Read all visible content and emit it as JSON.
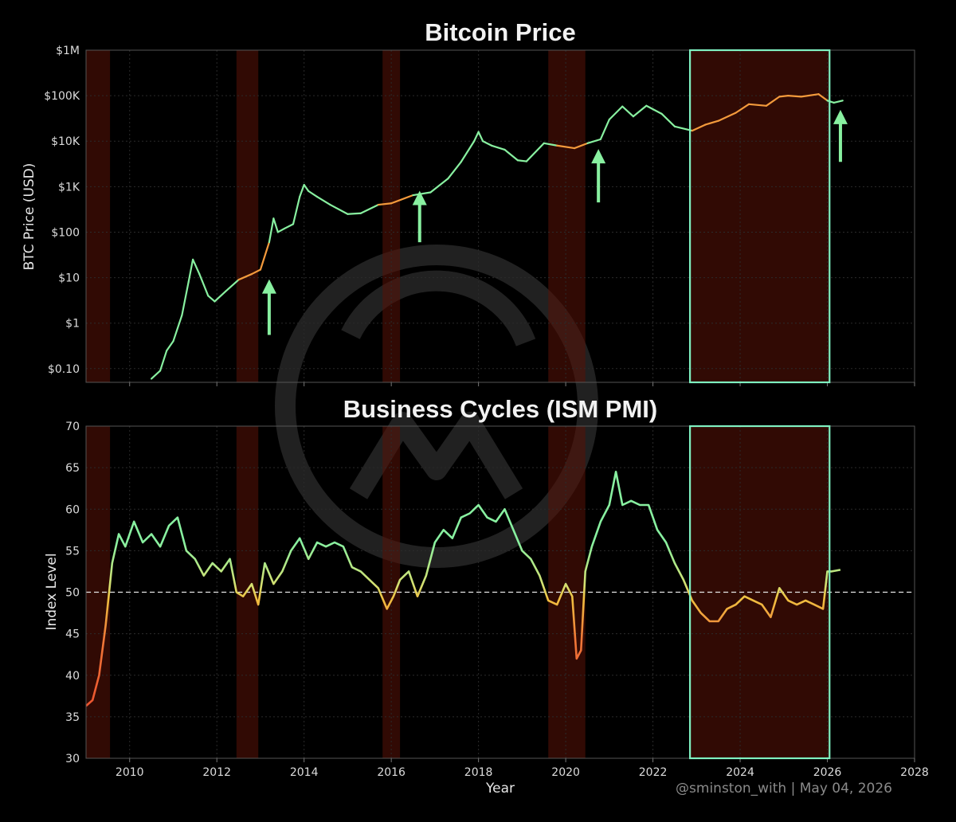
{
  "credit": "@sminston_with  |  May 04, 2026",
  "chart_data": [
    {
      "type": "line",
      "title": "Bitcoin Price",
      "ylabel": "BTC Price (USD)",
      "xlabel": "",
      "yscale": "log",
      "xlim": [
        2009.0,
        2028.0
      ],
      "ylim": [
        0.05,
        1000000
      ],
      "yticks": [
        {
          "v": 1000000,
          "label": "$1M"
        },
        {
          "v": 100000,
          "label": "$100K"
        },
        {
          "v": 10000,
          "label": "$10K"
        },
        {
          "v": 1000,
          "label": "$1K"
        },
        {
          "v": 100,
          "label": "$100"
        },
        {
          "v": 10,
          "label": "$10"
        },
        {
          "v": 1,
          "label": "$1"
        },
        {
          "v": 0.1,
          "label": "$0.10"
        }
      ],
      "grid": true,
      "recession_spans": [
        [
          2009.0,
          2009.55
        ],
        [
          2012.45,
          2012.95
        ],
        [
          2015.8,
          2016.2
        ],
        [
          2019.6,
          2020.45
        ],
        [
          2022.85,
          2026.05
        ]
      ],
      "highlight_box": [
        2022.85,
        2026.05
      ],
      "arrows": [
        {
          "x": 2013.2,
          "y_from": 0.55,
          "y_to": 8.5
        },
        {
          "x": 2016.65,
          "y_from": 60,
          "y_to": 750
        },
        {
          "x": 2020.75,
          "y_from": 450,
          "y_to": 6200
        },
        {
          "x": 2026.3,
          "y_from": 3500,
          "y_to": 45000
        }
      ],
      "series": [
        {
          "x": [
            2010.5,
            2010.7,
            2010.85,
            2011.0,
            2011.2,
            2011.35,
            2011.45,
            2011.6,
            2011.8,
            2011.95,
            2012.2,
            2012.5,
            2012.8,
            2013.0,
            2013.2,
            2013.3,
            2013.4,
            2013.55,
            2013.75,
            2013.9,
            2014.0,
            2014.1,
            2014.3,
            2014.6,
            2015.0,
            2015.3,
            2015.7,
            2016.0,
            2016.5,
            2016.9,
            2017.3,
            2017.6,
            2017.9,
            2018.0,
            2018.1,
            2018.3,
            2018.6,
            2018.9,
            2019.1,
            2019.5,
            2019.8,
            2020.2,
            2020.5,
            2020.8,
            2021.0,
            2021.3,
            2021.55,
            2021.85,
            2022.2,
            2022.5,
            2022.9,
            2023.2,
            2023.5,
            2023.9,
            2024.2,
            2024.6,
            2024.9,
            2025.1,
            2025.4,
            2025.8,
            2026.0,
            2026.15,
            2026.35
          ],
          "y": [
            0.06,
            0.09,
            0.25,
            0.4,
            1.5,
            8,
            25,
            12,
            4,
            3,
            5,
            9,
            12,
            15,
            60,
            200,
            100,
            120,
            150,
            600,
            1100,
            800,
            600,
            400,
            250,
            260,
            400,
            430,
            650,
            750,
            1500,
            3500,
            10000,
            16000,
            10000,
            8000,
            6500,
            3800,
            3600,
            9000,
            8000,
            7000,
            9000,
            11000,
            30000,
            58000,
            35000,
            60000,
            40000,
            21000,
            17000,
            23000,
            28000,
            42000,
            65000,
            60000,
            95000,
            100000,
            95000,
            108000,
            78000,
            70000,
            78000
          ],
          "state": [
            "exp",
            "exp",
            "exp",
            "exp",
            "exp",
            "exp",
            "exp",
            "exp",
            "exp",
            "exp",
            "exp",
            "con",
            "con",
            "con",
            "exp",
            "exp",
            "exp",
            "exp",
            "exp",
            "exp",
            "exp",
            "exp",
            "exp",
            "exp",
            "exp",
            "exp",
            "con",
            "con",
            "exp",
            "exp",
            "exp",
            "exp",
            "exp",
            "exp",
            "exp",
            "exp",
            "exp",
            "exp",
            "exp",
            "exp",
            "con",
            "con",
            "exp",
            "exp",
            "exp",
            "exp",
            "exp",
            "exp",
            "exp",
            "exp",
            "con",
            "con",
            "con",
            "con",
            "con",
            "con",
            "con",
            "con",
            "con",
            "con",
            "exp",
            "exp",
            "exp"
          ]
        }
      ]
    },
    {
      "type": "line",
      "title": "Business Cycles (ISM PMI)",
      "xlabel": "Year",
      "ylabel": "Index Level",
      "xlim": [
        2009.0,
        2028.0
      ],
      "ylim": [
        30,
        70
      ],
      "xticks": [
        2010,
        2012,
        2014,
        2016,
        2018,
        2020,
        2022,
        2024,
        2026,
        2028
      ],
      "yticks": [
        30,
        35,
        40,
        45,
        50,
        55,
        60,
        65,
        70
      ],
      "grid": true,
      "reference_line": 50,
      "recession_spans": [
        [
          2009.0,
          2009.55
        ],
        [
          2012.45,
          2012.95
        ],
        [
          2015.8,
          2016.2
        ],
        [
          2019.6,
          2020.45
        ],
        [
          2022.85,
          2026.05
        ]
      ],
      "highlight_box": [
        2022.85,
        2026.05
      ],
      "series": [
        {
          "x": [
            2009.0,
            2009.15,
            2009.3,
            2009.45,
            2009.6,
            2009.75,
            2009.9,
            2010.1,
            2010.3,
            2010.5,
            2010.7,
            2010.9,
            2011.1,
            2011.3,
            2011.5,
            2011.7,
            2011.9,
            2012.1,
            2012.3,
            2012.45,
            2012.6,
            2012.8,
            2012.95,
            2013.1,
            2013.3,
            2013.5,
            2013.7,
            2013.9,
            2014.1,
            2014.3,
            2014.5,
            2014.7,
            2014.9,
            2015.1,
            2015.3,
            2015.5,
            2015.7,
            2015.9,
            2016.05,
            2016.2,
            2016.4,
            2016.6,
            2016.8,
            2017.0,
            2017.2,
            2017.4,
            2017.6,
            2017.8,
            2018.0,
            2018.2,
            2018.4,
            2018.6,
            2018.8,
            2019.0,
            2019.2,
            2019.4,
            2019.6,
            2019.8,
            2020.0,
            2020.15,
            2020.25,
            2020.35,
            2020.45,
            2020.6,
            2020.8,
            2021.0,
            2021.15,
            2021.3,
            2021.5,
            2021.7,
            2021.9,
            2022.1,
            2022.3,
            2022.5,
            2022.7,
            2022.9,
            2023.1,
            2023.3,
            2023.5,
            2023.7,
            2023.9,
            2024.1,
            2024.3,
            2024.5,
            2024.7,
            2024.9,
            2025.1,
            2025.3,
            2025.5,
            2025.7,
            2025.9,
            2026.0,
            2026.1,
            2026.3
          ],
          "y": [
            36.3,
            37.0,
            40.0,
            46.0,
            53.5,
            57.0,
            55.5,
            58.5,
            56.0,
            57.0,
            55.5,
            58.0,
            59.0,
            55.0,
            54.0,
            52.0,
            53.5,
            52.5,
            54.0,
            50.0,
            49.5,
            51.0,
            48.5,
            53.5,
            51.0,
            52.5,
            55.0,
            56.5,
            54.0,
            56.0,
            55.5,
            56.0,
            55.5,
            53.0,
            52.5,
            51.5,
            50.5,
            48.0,
            49.5,
            51.5,
            52.5,
            49.5,
            52.0,
            56.0,
            57.5,
            56.5,
            59.0,
            59.5,
            60.5,
            59.0,
            58.5,
            60.0,
            57.5,
            55.0,
            54.0,
            52.0,
            49.0,
            48.5,
            51.0,
            49.5,
            42.0,
            43.0,
            52.5,
            55.5,
            58.5,
            60.5,
            64.5,
            60.5,
            61.0,
            60.5,
            60.5,
            57.5,
            56.0,
            53.5,
            51.5,
            49.0,
            47.5,
            46.5,
            46.5,
            48.0,
            48.5,
            49.5,
            49.0,
            48.5,
            47.0,
            50.5,
            49.0,
            48.5,
            49.0,
            48.5,
            48.0,
            52.5,
            52.5,
            52.7
          ]
        }
      ]
    }
  ]
}
